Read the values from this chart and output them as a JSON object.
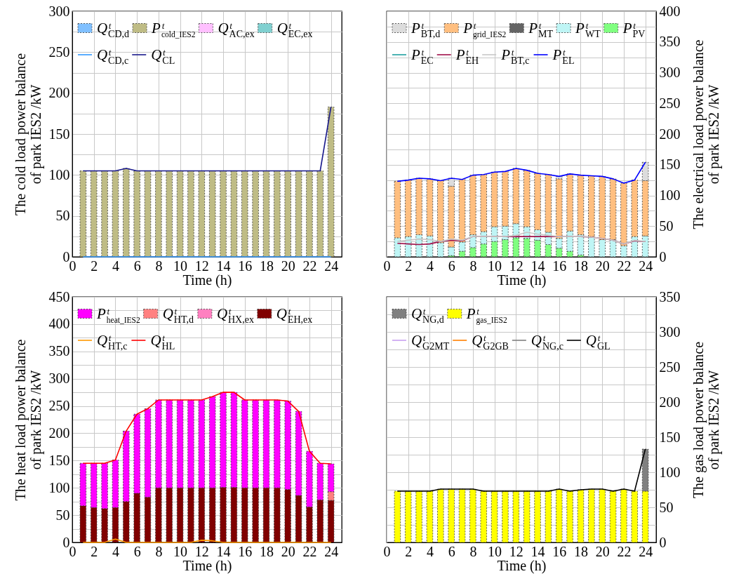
{
  "chart_data": [
    {
      "type": "bar",
      "stacked": true,
      "xlabel": "Time (h)",
      "ylabel": "The cold load power balance\nof park IES2 /kW",
      "x": [
        1,
        2,
        3,
        4,
        5,
        6,
        7,
        8,
        9,
        10,
        11,
        12,
        13,
        14,
        15,
        16,
        17,
        18,
        19,
        20,
        21,
        22,
        23,
        24
      ],
      "xlim": [
        0,
        25
      ],
      "xticks": [
        0,
        2,
        4,
        6,
        8,
        10,
        12,
        14,
        16,
        18,
        20,
        22,
        24
      ],
      "ylim": [
        0,
        300
      ],
      "yticks": [
        0,
        {
          "value": 25,
          "label": null
        },
        50,
        {
          "value": 75,
          "label": null
        },
        100,
        {
          "value": 125,
          "label": null
        },
        150,
        {
          "value": 175,
          "label": null
        },
        200,
        {
          "value": 225,
          "label": null
        },
        250,
        {
          "value": 275,
          "label": null
        },
        300
      ],
      "grid": true,
      "legend": "top left",
      "series": [
        {
          "name": "Qᵗ$_{EC,ex}$",
          "color": "#80d0d0",
          "values": [
            null,
            null,
            null,
            null,
            null,
            null,
            null,
            null,
            null,
            null,
            null,
            null,
            null,
            null,
            null,
            null,
            null,
            null,
            null,
            null,
            null,
            null,
            null,
            null
          ]
        },
        {
          "name": "Qᵗ$_{AC,ex}$",
          "color": "#ffc0ff",
          "values": [
            null,
            null,
            null,
            null,
            null,
            null,
            null,
            null,
            null,
            null,
            null,
            null,
            null,
            null,
            null,
            null,
            null,
            null,
            null,
            null,
            null,
            null,
            null,
            null
          ]
        },
        {
          "name": "Pᵗ$_{cold_IES2}$",
          "color": "#bfbc85",
          "values": [
            105,
            105,
            105,
            105,
            108,
            105,
            105,
            105,
            105,
            105,
            105,
            105,
            105,
            105,
            105,
            105,
            105,
            105,
            105,
            105,
            105,
            105,
            105,
            183
          ]
        },
        {
          "name": "Qᵗ$_{CD,d}$",
          "color": "#80c0ff",
          "values": [
            null,
            null,
            null,
            null,
            null,
            null,
            null,
            null,
            null,
            null,
            null,
            null,
            null,
            null,
            null,
            null,
            null,
            null,
            null,
            null,
            null,
            null,
            null,
            null
          ]
        },
        {
          "type": "line",
          "name": "Qᵗ$_{CD,c}$",
          "color": "#3399ff",
          "values": [
            0,
            0,
            0,
            0,
            0,
            0,
            0,
            0,
            0,
            0,
            0,
            0,
            0,
            0,
            0,
            0,
            0,
            0,
            0,
            0,
            0,
            0,
            0,
            0
          ]
        },
        {
          "type": "line",
          "name": "Qᵗ$_{CL}$",
          "color": "#1a1a8c",
          "values": [
            105,
            105,
            105,
            105,
            108,
            105,
            105,
            105,
            105,
            105,
            105,
            105,
            105,
            105,
            105,
            105,
            105,
            105,
            105,
            105,
            105,
            105,
            105,
            183
          ]
        }
      ]
    },
    {
      "type": "bar",
      "stacked": true,
      "xlabel": "Time (h)",
      "y2label": "The electrical load power balance\nof park IES2 /kW",
      "x": [
        1,
        2,
        3,
        4,
        5,
        6,
        7,
        8,
        9,
        10,
        11,
        12,
        13,
        14,
        15,
        16,
        17,
        18,
        19,
        20,
        21,
        22,
        23,
        24
      ],
      "xlim": [
        0,
        25
      ],
      "xticks": [
        0,
        2,
        4,
        6,
        8,
        10,
        12,
        14,
        16,
        18,
        20,
        22,
        24
      ],
      "y2lim": [
        0,
        400
      ],
      "y2ticks": [
        0,
        {
          "value": 25,
          "label": null
        },
        50,
        {
          "value": 75,
          "label": null
        },
        100,
        {
          "value": 125,
          "label": null
        },
        150,
        {
          "value": 175,
          "label": null
        },
        200,
        {
          "value": 225,
          "label": null
        },
        250,
        {
          "value": 275,
          "label": null
        },
        300,
        {
          "value": 325,
          "label": null
        },
        350,
        {
          "value": 375,
          "label": null
        },
        400
      ],
      "grid": true,
      "legend": "top left",
      "series": [
        {
          "axis": "y2",
          "name": "Pᵗ$_{PV}$",
          "color": "#80ff80",
          "values": [
            null,
            null,
            null,
            null,
            null,
            2,
            9,
            15,
            21,
            25,
            28,
            31,
            30,
            27,
            20,
            14,
            9,
            3,
            null,
            null,
            null,
            null,
            null,
            null
          ]
        },
        {
          "axis": "y2",
          "name": "Pᵗ$_{WT}$",
          "color": "#bff5f5",
          "values": [
            31,
            33,
            36,
            34,
            23,
            14,
            15,
            21,
            20,
            24,
            22,
            23,
            19,
            17,
            20,
            16,
            33,
            33,
            33,
            28,
            28,
            18,
            33,
            34
          ]
        },
        {
          "axis": "y2",
          "name": "Pᵗ$_{MT}$",
          "color": "#646464",
          "values": [
            null,
            null,
            null,
            null,
            null,
            null,
            null,
            null,
            null,
            null,
            null,
            null,
            null,
            null,
            null,
            null,
            null,
            null,
            null,
            null,
            null,
            null,
            null,
            null
          ]
        },
        {
          "axis": "y2",
          "name": "Pᵗ$_{grid_IES2}$",
          "color": "#ffbf80",
          "values": [
            92,
            92,
            92,
            93,
            101,
            99,
            102,
            97,
            93,
            89,
            89,
            90,
            92,
            92,
            94,
            97,
            93,
            97,
            99,
            103,
            99,
            102,
            92,
            90
          ]
        },
        {
          "axis": "y2",
          "name": "Pᵗ$_{BT,d}$",
          "color": "#dcdcdc",
          "values": [
            null,
            null,
            null,
            null,
            null,
            13,
            null,
            null,
            null,
            null,
            null,
            null,
            null,
            null,
            null,
            4,
            null,
            null,
            null,
            null,
            null,
            null,
            null,
            30
          ]
        },
        {
          "axis": "y2",
          "type": "line",
          "name": "Pᵗ$_{EC}$",
          "color": "#20a0a0",
          "values": [
            null,
            null,
            null,
            null,
            null,
            null,
            null,
            null,
            null,
            null,
            null,
            null,
            null,
            null,
            null,
            null,
            null,
            null,
            null,
            null,
            null,
            null,
            null,
            null
          ]
        },
        {
          "axis": "y2",
          "type": "line",
          "name": "Pᵗ$_{EH}$",
          "color": "#a0104a",
          "values": [
            22,
            21,
            20,
            21,
            25,
            27,
            26,
            33,
            33,
            33,
            33,
            33,
            33,
            33,
            33,
            33,
            33,
            33,
            32,
            30,
            27,
            21,
            26,
            25
          ]
        },
        {
          "axis": "y2",
          "type": "line",
          "name": "Pᵗ$_{BT,c}$",
          "color": "#c8c8c8",
          "values": [
            25,
            27,
            29,
            28,
            25,
            29,
            27,
            33,
            33,
            33,
            33,
            35,
            40,
            37,
            35,
            33,
            33,
            33,
            32,
            30,
            27,
            21,
            27,
            25
          ]
        },
        {
          "axis": "y2",
          "type": "line",
          "name": "Pᵗ$_{EL}$",
          "color": "#0000ff",
          "values": [
            123,
            125,
            128,
            127,
            124,
            128,
            126,
            133,
            134,
            138,
            139,
            144,
            141,
            136,
            134,
            131,
            135,
            133,
            132,
            131,
            127,
            120,
            125,
            154
          ]
        }
      ]
    },
    {
      "type": "bar",
      "stacked": true,
      "xlabel": "Time (h)",
      "ylabel": "The heat load power balance\nof park IES2 /kW",
      "x": [
        1,
        2,
        3,
        4,
        5,
        6,
        7,
        8,
        9,
        10,
        11,
        12,
        13,
        14,
        15,
        16,
        17,
        18,
        19,
        20,
        21,
        22,
        23,
        24
      ],
      "xlim": [
        0,
        25
      ],
      "xticks": [
        0,
        2,
        4,
        6,
        8,
        10,
        12,
        14,
        16,
        18,
        20,
        22,
        24
      ],
      "ylim": [
        0,
        450
      ],
      "yticks": [
        0,
        {
          "value": 25,
          "label": null
        },
        50,
        {
          "value": 75,
          "label": null
        },
        100,
        {
          "value": 125,
          "label": null
        },
        150,
        {
          "value": 175,
          "label": null
        },
        200,
        {
          "value": 225,
          "label": null
        },
        250,
        {
          "value": 275,
          "label": null
        },
        300,
        {
          "value": 325,
          "label": null
        },
        350,
        {
          "value": 375,
          "label": null
        },
        400,
        {
          "value": 425,
          "label": null
        },
        450
      ],
      "grid": true,
      "legend": "top left",
      "series": [
        {
          "name": "Qᵗ$_{EH,ex}$",
          "color": "#800000",
          "values": [
            67,
            64,
            62,
            64,
            75,
            90,
            83,
            100,
            100,
            100,
            100,
            100,
            100,
            101,
            101,
            100,
            100,
            100,
            100,
            97,
            86,
            65,
            78,
            77
          ]
        },
        {
          "name": "Qᵗ$_{HX,ex}$",
          "color": "#ff80c0",
          "values": [
            null,
            null,
            null,
            null,
            null,
            null,
            null,
            null,
            null,
            null,
            null,
            null,
            null,
            null,
            null,
            null,
            null,
            null,
            null,
            null,
            null,
            null,
            null,
            null
          ]
        },
        {
          "name": "Qᵗ$_{HT,d}$",
          "color": "#ff8080",
          "values": [
            null,
            null,
            null,
            null,
            null,
            null,
            null,
            null,
            null,
            null,
            null,
            null,
            null,
            null,
            null,
            null,
            null,
            null,
            null,
            null,
            null,
            null,
            null,
            16
          ]
        },
        {
          "name": "Pᵗ$_{heat_IES2}$",
          "color": "#ff00ff",
          "values": [
            78,
            81,
            83,
            87,
            129,
            145,
            162,
            161,
            161,
            161,
            161,
            161,
            167,
            174,
            174,
            161,
            161,
            161,
            161,
            162,
            154,
            102,
            67,
            51
          ]
        },
        {
          "type": "line",
          "name": "Qᵗ$_{HT,c}$",
          "color": "#ff9900",
          "values": [
            0,
            0,
            0,
            6,
            0,
            0,
            0,
            0,
            0,
            0,
            0,
            4,
            3,
            0,
            0,
            0,
            0,
            0,
            0,
            0,
            0,
            0,
            0,
            0
          ]
        },
        {
          "type": "line",
          "name": "Qᵗ$_{HL}$",
          "color": "#ff0000",
          "values": [
            145,
            145,
            145,
            151,
            204,
            235,
            245,
            261,
            261,
            261,
            261,
            261,
            267,
            275,
            275,
            261,
            261,
            261,
            261,
            259,
            240,
            167,
            145,
            144
          ]
        }
      ]
    },
    {
      "type": "bar",
      "stacked": true,
      "xlabel": "Time (h)",
      "y2label": "The gas load power balance\nof park IES2 /kW",
      "x": [
        1,
        2,
        3,
        4,
        5,
        6,
        7,
        8,
        9,
        10,
        11,
        12,
        13,
        14,
        15,
        16,
        17,
        18,
        19,
        20,
        21,
        22,
        23,
        24
      ],
      "xlim": [
        0,
        25
      ],
      "xticks": [
        0,
        2,
        4,
        6,
        8,
        10,
        12,
        14,
        16,
        18,
        20,
        22,
        24
      ],
      "y2lim": [
        0,
        350
      ],
      "y2ticks": [
        0,
        {
          "value": 25,
          "label": null
        },
        50,
        {
          "value": 75,
          "label": null
        },
        100,
        {
          "value": 125,
          "label": null
        },
        150,
        {
          "value": 175,
          "label": null
        },
        200,
        {
          "value": 225,
          "label": null
        },
        250,
        {
          "value": 275,
          "label": null
        },
        300,
        {
          "value": 325,
          "label": null
        },
        350
      ],
      "grid": true,
      "legend": "top left",
      "series": [
        {
          "axis": "y2",
          "name": "Pᵗ$_{gas_IES2}$",
          "color": "#ffff00",
          "values": [
            73,
            73,
            73,
            73,
            76,
            76,
            76,
            76,
            73,
            73,
            73,
            73,
            73,
            73,
            73,
            76,
            73,
            75,
            76,
            76,
            73,
            76,
            73,
            73
          ]
        },
        {
          "axis": "y2",
          "name": "Qᵗ$_{NG,d}$",
          "color": "#808080",
          "values": [
            null,
            null,
            null,
            null,
            null,
            null,
            null,
            null,
            null,
            null,
            null,
            null,
            null,
            null,
            null,
            null,
            null,
            null,
            null,
            null,
            null,
            null,
            null,
            60
          ]
        },
        {
          "axis": "y2",
          "type": "line",
          "name": "Qᵗ$_{G2MT}$",
          "color": "#c8a0f0",
          "values": [
            null,
            null,
            null,
            null,
            null,
            null,
            null,
            null,
            null,
            null,
            null,
            null,
            null,
            null,
            null,
            null,
            null,
            null,
            null,
            null,
            null,
            null,
            null,
            null
          ]
        },
        {
          "axis": "y2",
          "type": "line",
          "name": "Qᵗ$_{G2GB}$",
          "color": "#ff8000",
          "values": [
            null,
            null,
            null,
            null,
            null,
            null,
            null,
            null,
            null,
            null,
            null,
            null,
            null,
            null,
            null,
            null,
            null,
            null,
            null,
            null,
            null,
            null,
            null,
            null
          ]
        },
        {
          "axis": "y2",
          "type": "line",
          "name": "Qᵗ$_{NG,c}$",
          "color": "#808080",
          "values": [
            null,
            null,
            null,
            null,
            null,
            null,
            null,
            null,
            null,
            null,
            null,
            null,
            null,
            null,
            null,
            null,
            null,
            null,
            null,
            null,
            null,
            null,
            null,
            null
          ]
        },
        {
          "axis": "y2",
          "type": "line",
          "name": "Qᵗ$_{GL}$",
          "color": "#000000",
          "values": [
            73,
            73,
            73,
            73,
            76,
            76,
            76,
            76,
            73,
            73,
            73,
            73,
            73,
            73,
            73,
            76,
            73,
            75,
            76,
            76,
            73,
            76,
            73,
            133
          ]
        }
      ]
    }
  ]
}
